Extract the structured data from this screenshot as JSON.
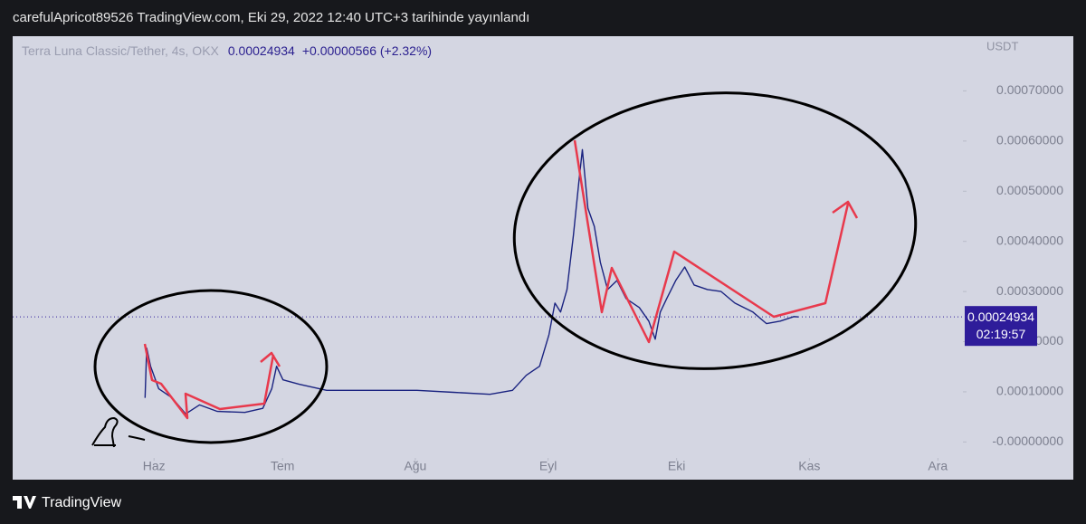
{
  "header": {
    "title": "carefulApricot89526 TradingView.com, Eki 29, 2022 12:40 UTC+3 tarihinde yayınlandı"
  },
  "chart_data": {
    "type": "line",
    "symbol": "Terra Luna Classic/Tether, 4s, OKX",
    "last_price": 0.00024934,
    "change": "+0.00000566 (+2.32%)",
    "countdown": "02:19:57",
    "y_unit": "USDT",
    "color": "#1a2380",
    "x": [
      -2.1,
      -1.7,
      -0.8,
      1.1,
      4.2,
      7.4,
      10.6,
      14.8,
      21.2,
      25.4,
      27.5,
      28.6,
      30.1,
      33.9,
      40.3,
      44.5,
      53,
      61.4,
      69.9,
      78.4,
      83.7,
      86.9,
      90,
      92.2,
      93.6,
      94.9,
      96.4,
      97.9,
      99.2,
      100,
      101.3,
      102.8,
      104.2,
      105.9,
      108.1,
      110.2,
      113.3,
      115.5,
      117,
      118.2,
      119.7,
      121.8,
      123.9,
      126.1,
      129.2,
      132.4,
      135.6,
      139.8,
      143,
      146.2,
      149.4,
      150.4
    ],
    "values": [
      8.8e-05,
      0.000187,
      0.000151,
      0.000106,
      8.8e-05,
      5.6e-05,
      7.4e-05,
      6.1e-05,
      5.9e-05,
      6.7e-05,
      0.000106,
      0.000151,
      0.000124,
      0.000115,
      0.000103,
      0.000103,
      0.000103,
      0.000103,
      9.9e-05,
      9.5e-05,
      0.000103,
      0.000133,
      0.000151,
      0.000214,
      0.000277,
      0.000259,
      0.000304,
      0.000412,
      0.00052,
      0.000583,
      0.000466,
      0.00043,
      0.000358,
      0.000304,
      0.000322,
      0.000286,
      0.000268,
      0.000241,
      0.000205,
      0.000259,
      0.000286,
      0.000322,
      0.000349,
      0.000313,
      0.000304,
      0.0003,
      0.000277,
      0.000259,
      0.000236,
      0.000241,
      0.00025,
      0.00024934
    ],
    "xlim": [
      -33,
      188
    ],
    "xticks": [
      {
        "value": 0,
        "label": "Haz"
      },
      {
        "value": 30,
        "label": "Tem"
      },
      {
        "value": 61,
        "label": "Ağu"
      },
      {
        "value": 92,
        "label": "Eyl"
      },
      {
        "value": 122,
        "label": "Eki"
      },
      {
        "value": 153,
        "label": "Kas"
      },
      {
        "value": 183,
        "label": "Ara"
      }
    ],
    "ylim": [
      -3e-05,
      0.0008
    ],
    "yticks": [
      {
        "value": 0,
        "label": "-0.00000000"
      },
      {
        "value": 0.0001,
        "label": "0.00010000"
      },
      {
        "value": 0.0002,
        "label": "0.00020000"
      },
      {
        "value": 0.0003,
        "label": "0.00030000"
      },
      {
        "value": 0.0004,
        "label": "0.00040000"
      },
      {
        "value": 0.0005,
        "label": "0.00050000"
      },
      {
        "value": 0.0006,
        "label": "0.00060000"
      },
      {
        "value": 0.0007,
        "label": "0.00070000"
      }
    ]
  },
  "footer": {
    "brand": "TradingView"
  }
}
